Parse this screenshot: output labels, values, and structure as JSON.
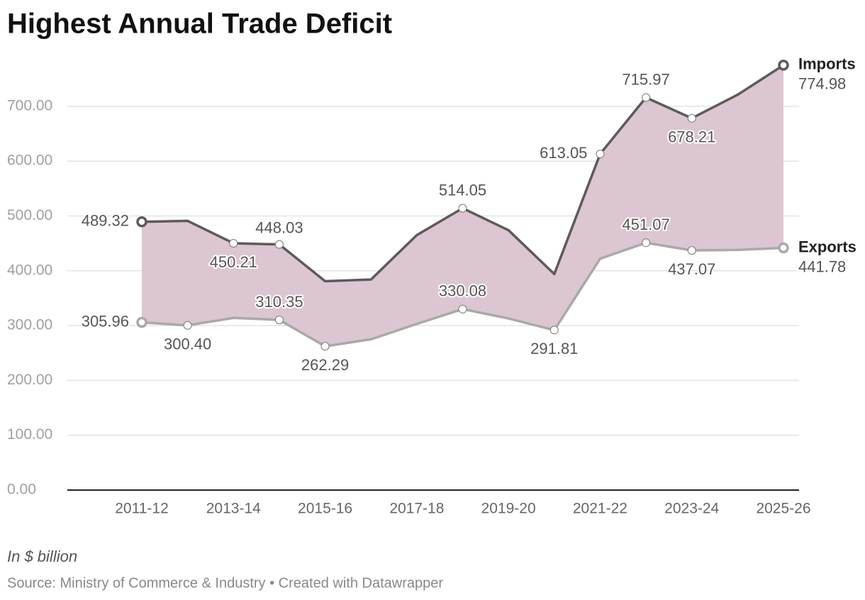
{
  "chart_data": {
    "type": "line",
    "title": "Highest Annual Trade Deficit",
    "note": "In $ billion",
    "source": "Source: Ministry of Commerce & Industry • Created with Datawrapper",
    "categories": [
      "2011-12",
      null,
      "2013-14",
      null,
      "2015-16",
      null,
      "2017-18",
      null,
      "2019-20",
      null,
      "2021-22",
      null,
      "2023-24",
      null,
      "2025-26"
    ],
    "series": [
      {
        "name": "Imports",
        "color": "#5b5b5b",
        "values": [
          489.32,
          491,
          450.21,
          448.03,
          381,
          384,
          465,
          514.05,
          474,
          394,
          613.05,
          715.97,
          678.21,
          721,
          774.98
        ],
        "value_labels": [
          "489.32",
          null,
          "450.21",
          "448.03",
          null,
          null,
          null,
          "514.05",
          null,
          null,
          "613.05",
          "715.97",
          "678.21",
          null,
          "774.98"
        ]
      },
      {
        "name": "Exports",
        "color": "#a9a9a9",
        "values": [
          305.96,
          300.4,
          314,
          310.35,
          262.29,
          275,
          303,
          330.08,
          313,
          291.81,
          422,
          451.07,
          437.07,
          438,
          441.78
        ],
        "value_labels": [
          "305.96",
          "300.40",
          null,
          "310.35",
          "262.29",
          null,
          null,
          "330.08",
          null,
          "291.81",
          null,
          "451.07",
          "437.07",
          null,
          "441.78"
        ]
      }
    ],
    "fill_between_color": "#dcc6d1",
    "ylim": [
      0,
      780
    ],
    "yticks": [
      {
        "value": 0,
        "label": "0.00"
      },
      {
        "value": 100,
        "label": "100.00"
      },
      {
        "value": 200,
        "label": "200.00"
      },
      {
        "value": 300,
        "label": "300.00"
      },
      {
        "value": 400,
        "label": "400.00"
      },
      {
        "value": 500,
        "label": "500.00"
      },
      {
        "value": 600,
        "label": "600.00"
      },
      {
        "value": 700,
        "label": "700.00"
      }
    ],
    "grid": true
  }
}
